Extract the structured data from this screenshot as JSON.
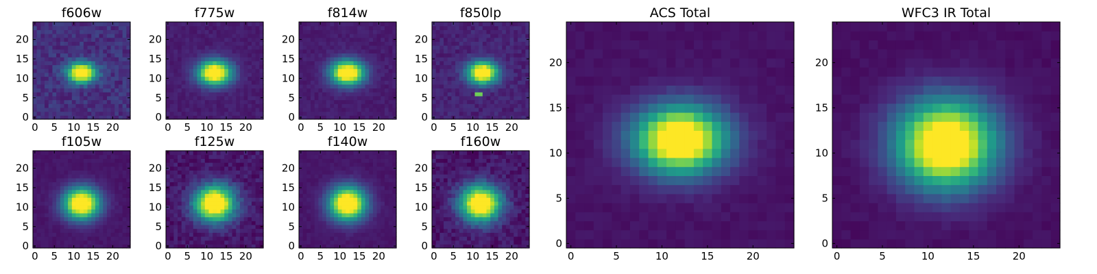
{
  "figure": {
    "colormap": "viridis",
    "colormap_stops": [
      "#440154",
      "#482878",
      "#3e4a89",
      "#31688e",
      "#26828e",
      "#1f9e89",
      "#35b779",
      "#6ece58",
      "#b5de2b",
      "#fde725"
    ]
  },
  "chart_data": [
    {
      "type": "heatmap",
      "title": "f606w",
      "grid_size": 25,
      "xticks": [
        0,
        5,
        10,
        15,
        20
      ],
      "yticks": [
        0,
        5,
        10,
        15,
        20
      ],
      "xlim": [
        -0.5,
        24.5
      ],
      "ylim": [
        -0.5,
        24.5
      ],
      "grid": false,
      "peak_pixel": [
        12,
        11.5
      ],
      "sigma_x": 2.6,
      "sigma_y": 1.8,
      "noise": 0.07,
      "background": 0.14
    },
    {
      "type": "heatmap",
      "title": "f775w",
      "grid_size": 25,
      "xticks": [
        0,
        5,
        10,
        15,
        20
      ],
      "yticks": [
        0,
        5,
        10,
        15,
        20
      ],
      "xlim": [
        -0.5,
        24.5
      ],
      "ylim": [
        -0.5,
        24.5
      ],
      "grid": false,
      "peak_pixel": [
        12,
        11.5
      ],
      "sigma_x": 3.0,
      "sigma_y": 2.2,
      "noise": 0.03,
      "background": 0.08
    },
    {
      "type": "heatmap",
      "title": "f814w",
      "grid_size": 25,
      "xticks": [
        0,
        5,
        10,
        15,
        20
      ],
      "yticks": [
        0,
        5,
        10,
        15,
        20
      ],
      "xlim": [
        -0.5,
        24.5
      ],
      "ylim": [
        -0.5,
        24.5
      ],
      "grid": false,
      "peak_pixel": [
        12,
        11.5
      ],
      "sigma_x": 3.0,
      "sigma_y": 2.2,
      "noise": 0.03,
      "background": 0.08
    },
    {
      "type": "heatmap",
      "title": "f850lp",
      "grid_size": 25,
      "xticks": [
        0,
        5,
        10,
        15,
        20
      ],
      "yticks": [
        0,
        5,
        10,
        15,
        20
      ],
      "xlim": [
        -0.5,
        24.5
      ],
      "ylim": [
        -0.5,
        24.5
      ],
      "grid": false,
      "peak_pixel": [
        12.5,
        11.5
      ],
      "sigma_x": 2.7,
      "sigma_y": 2.0,
      "noise": 0.05,
      "background": 0.1,
      "hot_pixels": [
        [
          11,
          6
        ],
        [
          12,
          6
        ]
      ]
    },
    {
      "type": "heatmap",
      "title": "f105w",
      "grid_size": 25,
      "xticks": [
        0,
        5,
        10,
        15,
        20
      ],
      "yticks": [
        0,
        5,
        10,
        15,
        20
      ],
      "xlim": [
        -0.5,
        24.5
      ],
      "ylim": [
        -0.5,
        24.5
      ],
      "grid": false,
      "peak_pixel": [
        12,
        11
      ],
      "sigma_x": 3.2,
      "sigma_y": 2.8,
      "noise": 0.02,
      "background": 0.06
    },
    {
      "type": "heatmap",
      "title": "f125w",
      "grid_size": 25,
      "xticks": [
        0,
        5,
        10,
        15,
        20
      ],
      "yticks": [
        0,
        5,
        10,
        15,
        20
      ],
      "xlim": [
        -0.5,
        24.5
      ],
      "ylim": [
        -0.5,
        24.5
      ],
      "grid": false,
      "peak_pixel": [
        12,
        11
      ],
      "sigma_x": 3.6,
      "sigma_y": 3.2,
      "noise": 0.06,
      "background": 0.06
    },
    {
      "type": "heatmap",
      "title": "f140w",
      "grid_size": 25,
      "xticks": [
        0,
        5,
        10,
        15,
        20
      ],
      "yticks": [
        0,
        5,
        10,
        15,
        20
      ],
      "xlim": [
        -0.5,
        24.5
      ],
      "ylim": [
        -0.5,
        24.5
      ],
      "grid": false,
      "peak_pixel": [
        12,
        11
      ],
      "sigma_x": 3.3,
      "sigma_y": 3.0,
      "noise": 0.02,
      "background": 0.06
    },
    {
      "type": "heatmap",
      "title": "f160w",
      "grid_size": 25,
      "xticks": [
        0,
        5,
        10,
        15,
        20
      ],
      "yticks": [
        0,
        5,
        10,
        15,
        20
      ],
      "xlim": [
        -0.5,
        24.5
      ],
      "ylim": [
        -0.5,
        24.5
      ],
      "grid": false,
      "peak_pixel": [
        12,
        11
      ],
      "sigma_x": 3.6,
      "sigma_y": 3.2,
      "noise": 0.06,
      "background": 0.06
    },
    {
      "type": "heatmap",
      "title": "ACS Total",
      "grid_size": 25,
      "xticks": [
        0,
        5,
        10,
        15,
        20
      ],
      "yticks": [
        0,
        5,
        10,
        15,
        20
      ],
      "xlim": [
        -0.5,
        24.5
      ],
      "ylim": [
        -0.5,
        24.5
      ],
      "grid": false,
      "peak_pixel": [
        12,
        11.5
      ],
      "sigma_x": 3.5,
      "sigma_y": 2.6,
      "noise": 0.02,
      "background": 0.05
    },
    {
      "type": "heatmap",
      "title": "WFC3 IR Total",
      "grid_size": 25,
      "xticks": [
        0,
        5,
        10,
        15,
        20
      ],
      "yticks": [
        0,
        5,
        10,
        15,
        20
      ],
      "xlim": [
        -0.5,
        24.5
      ],
      "ylim": [
        -0.5,
        24.5
      ],
      "grid": false,
      "peak_pixel": [
        12,
        11
      ],
      "sigma_x": 3.8,
      "sigma_y": 3.4,
      "noise": 0.02,
      "background": 0.04
    }
  ]
}
